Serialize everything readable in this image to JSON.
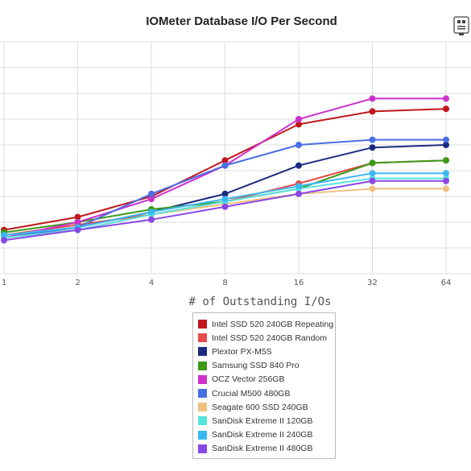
{
  "chart_data": {
    "type": "line",
    "title": "IOMeter Database I/O Per Second",
    "xlabel": "# of Outstanding I/Os",
    "ylabel": "",
    "categories": [
      "1",
      "2",
      "4",
      "8",
      "16",
      "32",
      "64"
    ],
    "y_scale": "linear",
    "ylim": [
      0,
      9
    ],
    "grid": true,
    "legend_position": "bottom-center",
    "series": [
      {
        "name": "Intel SSD 520 240GB Repeating",
        "color": "#c0171c",
        "values": [
          1.7,
          2.2,
          3.0,
          4.4,
          5.8,
          6.3,
          6.4
        ]
      },
      {
        "name": "Intel SSD 520 240GB Random",
        "color": "#e8494a",
        "values": [
          1.5,
          1.9,
          2.3,
          2.8,
          3.5,
          4.3,
          4.4
        ]
      },
      {
        "name": "Plextor PX-M5S",
        "color": "#1b2a80",
        "values": [
          1.4,
          1.8,
          2.4,
          3.1,
          4.2,
          4.9,
          5.0
        ]
      },
      {
        "name": "Samsung SSD 840 Pro",
        "color": "#3d9a18",
        "values": [
          1.6,
          2.0,
          2.5,
          2.8,
          3.3,
          4.3,
          4.4
        ]
      },
      {
        "name": "OCZ Vector 256GB",
        "color": "#cc33cc",
        "values": [
          1.4,
          2.0,
          2.9,
          4.2,
          6.0,
          6.8,
          6.8
        ]
      },
      {
        "name": "Crucial M500 480GB",
        "color": "#4a6fe3",
        "values": [
          1.4,
          1.8,
          3.1,
          4.2,
          5.0,
          5.2,
          5.2
        ]
      },
      {
        "name": "Seagate 600 SSD 240GB",
        "color": "#f0c182",
        "values": [
          1.4,
          1.7,
          2.3,
          2.7,
          3.1,
          3.3,
          3.3
        ]
      },
      {
        "name": "SanDisk Extreme II 120GB",
        "color": "#57e3de",
        "values": [
          1.4,
          1.7,
          2.3,
          2.8,
          3.3,
          3.7,
          3.7
        ]
      },
      {
        "name": "SanDisk Extreme II 240GB",
        "color": "#3ab8f2",
        "values": [
          1.5,
          1.8,
          2.4,
          2.9,
          3.4,
          3.9,
          3.9
        ]
      },
      {
        "name": "SanDisk Extreme II 480GB",
        "color": "#8a47e6",
        "values": [
          1.3,
          1.7,
          2.1,
          2.6,
          3.1,
          3.6,
          3.6
        ]
      }
    ]
  }
}
